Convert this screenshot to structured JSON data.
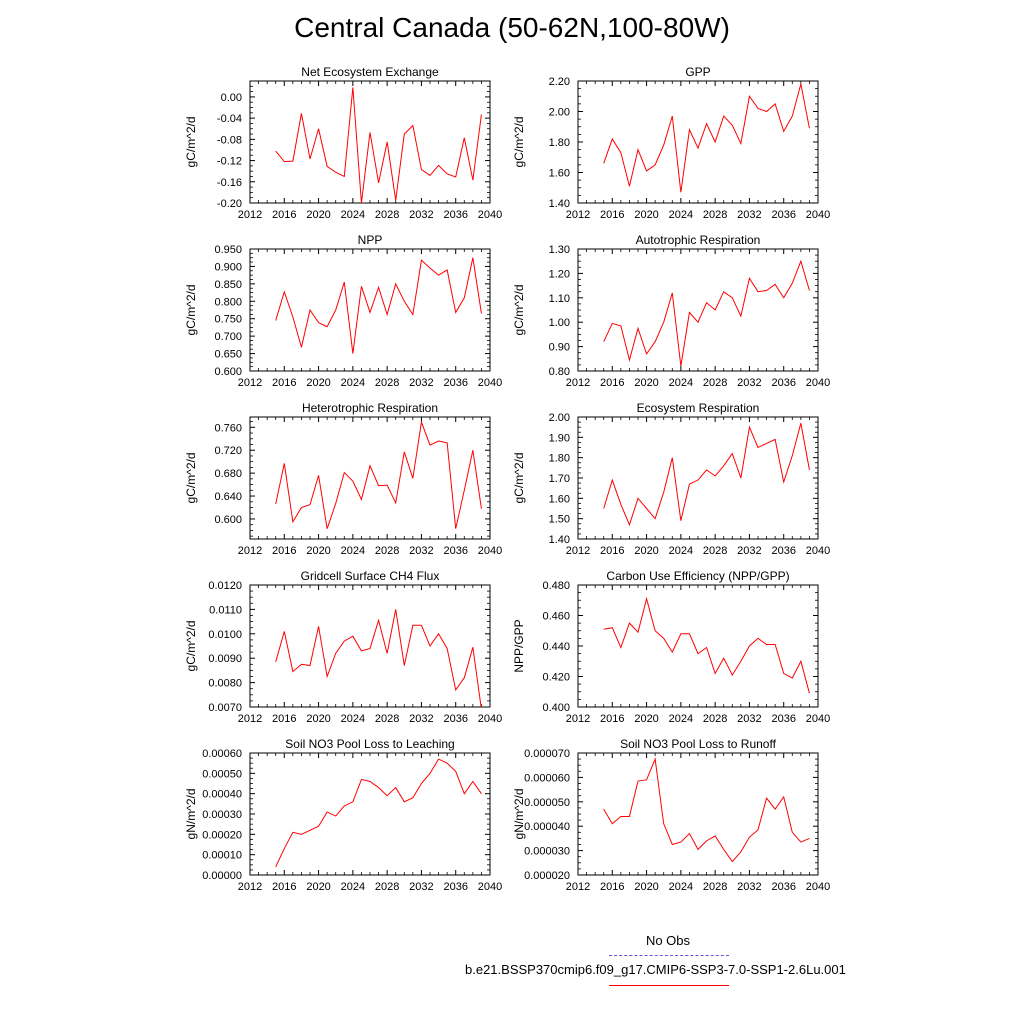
{
  "page": {
    "title": "Central Canada (50-62N,100-80W)"
  },
  "legend": {
    "items": [
      {
        "label": "No Obs",
        "color": "#5a5ad6",
        "style": "dashed"
      },
      {
        "label": "b.e21.BSSP370cmip6.f09_g17.CMIP6-SSP3-7.0-SSP1-2.6Lu.001",
        "color": "#ff0000",
        "style": "solid"
      }
    ]
  },
  "chart_data": [
    {
      "type": "line",
      "title": "Net Ecosystem Exchange",
      "ylabel": "gC/m^2/d",
      "xlim": [
        2012,
        2040
      ],
      "xticks": [
        "2012",
        "2016",
        "2020",
        "2024",
        "2028",
        "2032",
        "2036",
        "2040"
      ],
      "ylim": [
        -0.2,
        0.03
      ],
      "yticks": [
        "0.00",
        "-0.04",
        "-0.08",
        "-0.12",
        "-0.16",
        "-0.20"
      ],
      "ytick_values": [
        0.0,
        -0.04,
        -0.08,
        -0.12,
        -0.16,
        -0.2
      ],
      "series": [
        {
          "color": "#ff0000",
          "x": [
            2015,
            2016,
            2017,
            2018,
            2019,
            2020,
            2021,
            2022,
            2023,
            2024,
            2025,
            2026,
            2027,
            2028,
            2029,
            2030,
            2031,
            2032,
            2033,
            2034,
            2035,
            2036,
            2037,
            2038,
            2039
          ],
          "y": [
            -0.102,
            -0.122,
            -0.121,
            -0.031,
            -0.117,
            -0.06,
            -0.131,
            -0.142,
            -0.15,
            0.018,
            -0.2,
            -0.067,
            -0.162,
            -0.085,
            -0.195,
            -0.07,
            -0.054,
            -0.137,
            -0.148,
            -0.129,
            -0.145,
            -0.151,
            -0.077,
            -0.157,
            -0.033
          ]
        }
      ]
    },
    {
      "type": "line",
      "title": "GPP",
      "ylabel": "gC/m^2/d",
      "xlim": [
        2012,
        2040
      ],
      "xticks": [
        "2012",
        "2016",
        "2020",
        "2024",
        "2028",
        "2032",
        "2036",
        "2040"
      ],
      "ylim": [
        1.4,
        2.2
      ],
      "yticks": [
        "1.40",
        "1.60",
        "1.80",
        "2.00",
        "2.20"
      ],
      "ytick_values": [
        1.4,
        1.6,
        1.8,
        2.0,
        2.2
      ],
      "series": [
        {
          "color": "#ff0000",
          "x": [
            2015,
            2016,
            2017,
            2018,
            2019,
            2020,
            2021,
            2022,
            2023,
            2024,
            2025,
            2026,
            2027,
            2028,
            2029,
            2030,
            2031,
            2032,
            2033,
            2034,
            2035,
            2036,
            2037,
            2038,
            2039
          ],
          "y": [
            1.66,
            1.82,
            1.73,
            1.51,
            1.75,
            1.61,
            1.65,
            1.78,
            1.97,
            1.47,
            1.88,
            1.76,
            1.92,
            1.8,
            1.97,
            1.91,
            1.79,
            2.1,
            2.02,
            2.0,
            2.05,
            1.87,
            1.97,
            2.18,
            1.89
          ]
        }
      ]
    },
    {
      "type": "line",
      "title": "NPP",
      "ylabel": "gC/m^2/d",
      "xlim": [
        2012,
        2040
      ],
      "xticks": [
        "2012",
        "2016",
        "2020",
        "2024",
        "2028",
        "2032",
        "2036",
        "2040"
      ],
      "ylim": [
        0.6,
        0.95
      ],
      "yticks": [
        "0.600",
        "0.650",
        "0.700",
        "0.750",
        "0.800",
        "0.850",
        "0.900",
        "0.950"
      ],
      "ytick_values": [
        0.6,
        0.65,
        0.7,
        0.75,
        0.8,
        0.85,
        0.9,
        0.95
      ],
      "series": [
        {
          "color": "#ff0000",
          "x": [
            2015,
            2016,
            2017,
            2018,
            2019,
            2020,
            2021,
            2022,
            2023,
            2024,
            2025,
            2026,
            2027,
            2028,
            2029,
            2030,
            2031,
            2032,
            2033,
            2034,
            2035,
            2036,
            2037,
            2038,
            2039
          ],
          "y": [
            0.745,
            0.827,
            0.755,
            0.668,
            0.775,
            0.739,
            0.727,
            0.775,
            0.855,
            0.65,
            0.843,
            0.768,
            0.84,
            0.762,
            0.85,
            0.8,
            0.762,
            0.918,
            0.895,
            0.875,
            0.89,
            0.768,
            0.81,
            0.925,
            0.765
          ]
        }
      ]
    },
    {
      "type": "line",
      "title": "Autotrophic Respiration",
      "ylabel": "gC/m^2/d",
      "xlim": [
        2012,
        2040
      ],
      "xticks": [
        "2012",
        "2016",
        "2020",
        "2024",
        "2028",
        "2032",
        "2036",
        "2040"
      ],
      "ylim": [
        0.8,
        1.3
      ],
      "yticks": [
        "0.80",
        "0.90",
        "1.00",
        "1.10",
        "1.20",
        "1.30"
      ],
      "ytick_values": [
        0.8,
        0.9,
        1.0,
        1.1,
        1.2,
        1.3
      ],
      "series": [
        {
          "color": "#ff0000",
          "x": [
            2015,
            2016,
            2017,
            2018,
            2019,
            2020,
            2021,
            2022,
            2023,
            2024,
            2025,
            2026,
            2027,
            2028,
            2029,
            2030,
            2031,
            2032,
            2033,
            2034,
            2035,
            2036,
            2037,
            2038,
            2039
          ],
          "y": [
            0.92,
            0.995,
            0.985,
            0.845,
            0.975,
            0.87,
            0.92,
            1.0,
            1.12,
            0.82,
            1.04,
            1.0,
            1.08,
            1.05,
            1.125,
            1.1,
            1.025,
            1.18,
            1.125,
            1.13,
            1.155,
            1.1,
            1.16,
            1.25,
            1.13
          ]
        }
      ]
    },
    {
      "type": "line",
      "title": "Heterotrophic Respiration",
      "ylabel": "gC/m^2/d",
      "xlim": [
        2012,
        2040
      ],
      "xticks": [
        "2012",
        "2016",
        "2020",
        "2024",
        "2028",
        "2032",
        "2036",
        "2040"
      ],
      "ylim": [
        0.565,
        0.778
      ],
      "yticks": [
        "0.600",
        "0.640",
        "0.680",
        "0.720",
        "0.760"
      ],
      "ytick_values": [
        0.6,
        0.64,
        0.68,
        0.72,
        0.76
      ],
      "series": [
        {
          "color": "#ff0000",
          "x": [
            2015,
            2016,
            2017,
            2018,
            2019,
            2020,
            2021,
            2022,
            2023,
            2024,
            2025,
            2026,
            2027,
            2028,
            2029,
            2030,
            2031,
            2032,
            2033,
            2034,
            2035,
            2036,
            2037,
            2038,
            2039
          ],
          "y": [
            0.626,
            0.697,
            0.595,
            0.62,
            0.625,
            0.676,
            0.583,
            0.627,
            0.681,
            0.666,
            0.634,
            0.693,
            0.658,
            0.659,
            0.628,
            0.717,
            0.671,
            0.769,
            0.729,
            0.736,
            0.733,
            0.583,
            0.65,
            0.72,
            0.618
          ]
        }
      ]
    },
    {
      "type": "line",
      "title": "Ecosystem Respiration",
      "ylabel": "gC/m^2/d",
      "xlim": [
        2012,
        2040
      ],
      "xticks": [
        "2012",
        "2016",
        "2020",
        "2024",
        "2028",
        "2032",
        "2036",
        "2040"
      ],
      "ylim": [
        1.4,
        2.0
      ],
      "yticks": [
        "1.40",
        "1.50",
        "1.60",
        "1.70",
        "1.80",
        "1.90",
        "2.00"
      ],
      "ytick_values": [
        1.4,
        1.5,
        1.6,
        1.7,
        1.8,
        1.9,
        2.0
      ],
      "series": [
        {
          "color": "#ff0000",
          "x": [
            2015,
            2016,
            2017,
            2018,
            2019,
            2020,
            2021,
            2022,
            2023,
            2024,
            2025,
            2026,
            2027,
            2028,
            2029,
            2030,
            2031,
            2032,
            2033,
            2034,
            2035,
            2036,
            2037,
            2038,
            2039
          ],
          "y": [
            1.55,
            1.69,
            1.57,
            1.47,
            1.6,
            1.55,
            1.5,
            1.63,
            1.8,
            1.49,
            1.67,
            1.69,
            1.74,
            1.71,
            1.76,
            1.82,
            1.7,
            1.95,
            1.85,
            1.87,
            1.89,
            1.68,
            1.81,
            1.97,
            1.74
          ]
        }
      ]
    },
    {
      "type": "line",
      "title": "Gridcell Surface CH4 Flux",
      "ylabel": "gC/m^2/d",
      "xlim": [
        2012,
        2040
      ],
      "xticks": [
        "2012",
        "2016",
        "2020",
        "2024",
        "2028",
        "2032",
        "2036",
        "2040"
      ],
      "ylim": [
        0.007,
        0.012
      ],
      "yticks": [
        "0.0070",
        "0.0080",
        "0.0090",
        "0.0100",
        "0.0110",
        "0.0120"
      ],
      "ytick_values": [
        0.007,
        0.008,
        0.009,
        0.01,
        0.011,
        0.012
      ],
      "series": [
        {
          "color": "#ff0000",
          "x": [
            2015,
            2016,
            2017,
            2018,
            2019,
            2020,
            2021,
            2022,
            2023,
            2024,
            2025,
            2026,
            2027,
            2028,
            2029,
            2030,
            2031,
            2032,
            2033,
            2034,
            2035,
            2036,
            2037,
            2038,
            2039
          ],
          "y": [
            0.00885,
            0.0101,
            0.00845,
            0.00875,
            0.0087,
            0.0103,
            0.00825,
            0.0092,
            0.0097,
            0.0099,
            0.0093,
            0.0094,
            0.01055,
            0.0092,
            0.011,
            0.0087,
            0.01035,
            0.01035,
            0.0095,
            0.01,
            0.0094,
            0.0077,
            0.0082,
            0.00945,
            0.0069
          ]
        }
      ]
    },
    {
      "type": "line",
      "title": "Carbon Use Efficiency (NPP/GPP)",
      "ylabel": "NPP/GPP",
      "xlim": [
        2012,
        2040
      ],
      "xticks": [
        "2012",
        "2016",
        "2020",
        "2024",
        "2028",
        "2032",
        "2036",
        "2040"
      ],
      "ylim": [
        0.4,
        0.48
      ],
      "yticks": [
        "0.400",
        "0.420",
        "0.440",
        "0.460",
        "0.480"
      ],
      "ytick_values": [
        0.4,
        0.42,
        0.44,
        0.46,
        0.48
      ],
      "series": [
        {
          "color": "#ff0000",
          "x": [
            2015,
            2016,
            2017,
            2018,
            2019,
            2020,
            2021,
            2022,
            2023,
            2024,
            2025,
            2026,
            2027,
            2028,
            2029,
            2030,
            2031,
            2032,
            2033,
            2034,
            2035,
            2036,
            2037,
            2038,
            2039
          ],
          "y": [
            0.451,
            0.452,
            0.439,
            0.455,
            0.449,
            0.471,
            0.45,
            0.445,
            0.436,
            0.448,
            0.448,
            0.435,
            0.439,
            0.422,
            0.432,
            0.421,
            0.43,
            0.44,
            0.445,
            0.441,
            0.441,
            0.422,
            0.419,
            0.43,
            0.409
          ]
        }
      ]
    },
    {
      "type": "line",
      "title": "Soil NO3 Pool Loss to Leaching",
      "ylabel": "gN/m^2/d",
      "xlim": [
        2012,
        2040
      ],
      "xticks": [
        "2012",
        "2016",
        "2020",
        "2024",
        "2028",
        "2032",
        "2036",
        "2040"
      ],
      "ylim": [
        0.0,
        0.0006
      ],
      "yticks": [
        "0.00000",
        "0.00010",
        "0.00020",
        "0.00030",
        "0.00040",
        "0.00050",
        "0.00060"
      ],
      "ytick_values": [
        0.0,
        0.0001,
        0.0002,
        0.0003,
        0.0004,
        0.0005,
        0.0006
      ],
      "series": [
        {
          "color": "#ff0000",
          "x": [
            2015,
            2016,
            2017,
            2018,
            2019,
            2020,
            2021,
            2022,
            2023,
            2024,
            2025,
            2026,
            2027,
            2028,
            2029,
            2030,
            2031,
            2032,
            2033,
            2034,
            2035,
            2036,
            2037,
            2038,
            2039
          ],
          "y": [
            4e-05,
            0.00013,
            0.00021,
            0.0002,
            0.00022,
            0.00024,
            0.00031,
            0.00029,
            0.00034,
            0.00036,
            0.00047,
            0.00046,
            0.00043,
            0.00039,
            0.00043,
            0.00036,
            0.00038,
            0.00045,
            0.0005,
            0.00057,
            0.00055,
            0.00051,
            0.0004,
            0.00046,
            0.0004
          ]
        }
      ]
    },
    {
      "type": "line",
      "title": "Soil NO3 Pool Loss to Runoff",
      "ylabel": "gN/m^2/d",
      "xlim": [
        2012,
        2040
      ],
      "xticks": [
        "2012",
        "2016",
        "2020",
        "2024",
        "2028",
        "2032",
        "2036",
        "2040"
      ],
      "ylim": [
        2e-05,
        7e-05
      ],
      "yticks": [
        "0.000020",
        "0.000030",
        "0.000040",
        "0.000050",
        "0.000060",
        "0.000070"
      ],
      "ytick_values": [
        2e-05,
        3e-05,
        4e-05,
        5e-05,
        6e-05,
        7e-05
      ],
      "series": [
        {
          "color": "#ff0000",
          "x": [
            2015,
            2016,
            2017,
            2018,
            2019,
            2020,
            2021,
            2022,
            2023,
            2024,
            2025,
            2026,
            2027,
            2028,
            2029,
            2030,
            2031,
            2032,
            2033,
            2034,
            2035,
            2036,
            2037,
            2038,
            2039
          ],
          "y": [
            4.7e-05,
            4.1e-05,
            4.4e-05,
            4.4e-05,
            5.85e-05,
            5.9e-05,
            6.75e-05,
            4.1e-05,
            3.25e-05,
            3.35e-05,
            3.7e-05,
            3.05e-05,
            3.4e-05,
            3.6e-05,
            3.05e-05,
            2.55e-05,
            2.95e-05,
            3.55e-05,
            3.85e-05,
            5.15e-05,
            4.7e-05,
            5.2e-05,
            3.75e-05,
            3.35e-05,
            3.5e-05
          ]
        }
      ]
    }
  ]
}
